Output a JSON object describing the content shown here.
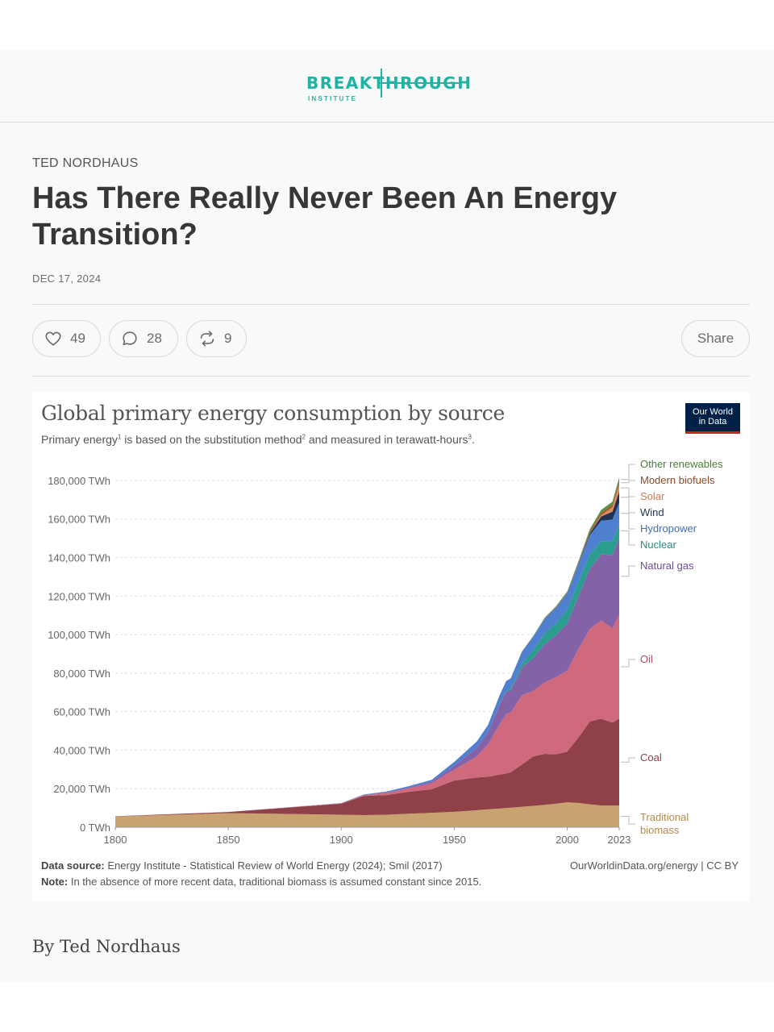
{
  "header": {
    "logo_word": "BREAKTHROUGH",
    "logo_sub": "INSTITUTE"
  },
  "post": {
    "author": "TED NORDHAUS",
    "title": "Has There Really Never Been An Energy Transition?",
    "date": "DEC 17, 2024",
    "byline": "By Ted Nordhaus"
  },
  "actions": {
    "likes": "49",
    "comments": "28",
    "restacks": "9",
    "share_label": "Share"
  },
  "icons": {
    "like": "heart-icon",
    "comment": "comment-bubble-icon",
    "restack": "restack-arrows-icon"
  },
  "chart": {
    "title": "Global primary energy consumption by source",
    "subtitle_parts": [
      "Primary energy",
      "1",
      " is based on the substitution method",
      "2",
      " and measured in terawatt-hours",
      "3",
      "."
    ],
    "badge": [
      "Our World",
      "in Data"
    ],
    "source_label": "Data source:",
    "source_text": " Energy Institute - Statistical Review of World Energy (2024); Smil (2017)",
    "note_label": "Note:",
    "note_text": " In the absence of more recent data, traditional biomass is assumed constant since 2015.",
    "credit": "OurWorldinData.org/energy | CC BY"
  },
  "chart_data": {
    "type": "area",
    "stacked": true,
    "title": "Global primary energy consumption by source",
    "unit": "TWh",
    "x": [
      1800,
      1850,
      1900,
      1910,
      1920,
      1930,
      1940,
      1950,
      1960,
      1965,
      1970,
      1973,
      1975,
      1980,
      1985,
      1990,
      1995,
      2000,
      2005,
      2010,
      2015,
      2020,
      2023
    ],
    "y_ticks": [
      0,
      20000,
      40000,
      60000,
      80000,
      100000,
      120000,
      140000,
      160000,
      180000
    ],
    "y_tick_labels": [
      "0 TWh",
      "20,000 TWh",
      "40,000 TWh",
      "60,000 TWh",
      "80,000 TWh",
      "100,000 TWh",
      "120,000 TWh",
      "140,000 TWh",
      "160,000 TWh",
      "180,000 TWh"
    ],
    "x_ticks": [
      1800,
      1850,
      1900,
      1950,
      2000,
      2023
    ],
    "ylim": [
      0,
      185000
    ],
    "xlim": [
      1800,
      2023
    ],
    "grid": true,
    "legend": "right",
    "series": [
      {
        "name": "Traditional biomass",
        "label_lines": [
          "Traditional",
          "biomass"
        ],
        "color": "#c9a36f",
        "label_color": "#b08a4e",
        "values": [
          5600,
          7300,
          6500,
          6300,
          6500,
          7000,
          7500,
          8000,
          8800,
          9300,
          9700,
          10000,
          10100,
          10600,
          11100,
          11600,
          12200,
          12900,
          12600,
          11900,
          11300,
          11300,
          11300
        ]
      },
      {
        "name": "Coal",
        "color": "#8f4048",
        "label_color": "#8f4048",
        "values": [
          100,
          600,
          5700,
          9900,
          10200,
          11400,
          12200,
          16200,
          17000,
          16900,
          17600,
          17900,
          18400,
          22000,
          25700,
          26500,
          25700,
          26400,
          34000,
          43000,
          45000,
          43000,
          45000
        ]
      },
      {
        "name": "Oil",
        "color": "#cf6a7e",
        "label_color": "#b04a5e",
        "values": [
          0,
          0,
          200,
          400,
          1100,
          1800,
          3200,
          5700,
          11000,
          17000,
          26000,
          31000,
          31000,
          36000,
          34000,
          37000,
          40000,
          42000,
          46000,
          48000,
          51000,
          49000,
          54000
        ]
      },
      {
        "name": "Natural gas",
        "color": "#8462a8",
        "label_color": "#6b4c96",
        "values": [
          0,
          0,
          100,
          200,
          300,
          500,
          800,
          2000,
          4500,
          6200,
          10200,
          11500,
          11500,
          14500,
          17000,
          20000,
          21700,
          24500,
          27500,
          31500,
          34300,
          38000,
          40000
        ]
      },
      {
        "name": "Nuclear",
        "color": "#2a9d8f",
        "label_color": "#2a8a7d",
        "values": [
          0,
          0,
          0,
          0,
          0,
          0,
          0,
          0,
          0,
          50,
          200,
          500,
          900,
          1800,
          4000,
          5400,
          6200,
          7000,
          7300,
          7200,
          6900,
          7000,
          7100
        ]
      },
      {
        "name": "Hydropower",
        "color": "#4f7fcf",
        "label_color": "#3f6fbf",
        "values": [
          0,
          0,
          50,
          200,
          400,
          650,
          900,
          2000,
          3200,
          3700,
          4600,
          5000,
          5400,
          6300,
          7200,
          7700,
          8100,
          8700,
          9200,
          10000,
          10600,
          11400,
          11000
        ]
      },
      {
        "name": "Wind",
        "color": "#1d3354",
        "label_color": "#1d3354",
        "values": [
          0,
          0,
          0,
          0,
          0,
          0,
          0,
          0,
          0,
          0,
          0,
          0,
          0,
          0,
          0,
          0,
          0,
          100,
          300,
          900,
          2200,
          4100,
          5800
        ]
      },
      {
        "name": "Solar",
        "color": "#e3895f",
        "label_color": "#d27a50",
        "values": [
          0,
          0,
          0,
          0,
          0,
          0,
          0,
          0,
          0,
          0,
          0,
          0,
          0,
          0,
          0,
          0,
          0,
          0,
          0,
          100,
          700,
          2200,
          3900
        ]
      },
      {
        "name": "Modern biofuels",
        "color": "#a3572e",
        "label_color": "#8a4a28",
        "values": [
          0,
          0,
          0,
          0,
          0,
          0,
          0,
          0,
          0,
          0,
          0,
          0,
          0,
          0,
          50,
          150,
          250,
          250,
          500,
          1000,
          1200,
          1300,
          1500
        ]
      },
      {
        "name": "Other renewables",
        "color": "#5b8f47",
        "label_color": "#4a7f38",
        "values": [
          0,
          0,
          0,
          0,
          0,
          0,
          0,
          0,
          0,
          0,
          0,
          0,
          50,
          150,
          250,
          400,
          500,
          600,
          800,
          1100,
          1500,
          1700,
          1900
        ]
      }
    ]
  },
  "palette": {
    "accent": "#1fb3a3",
    "text_dark": "#363737",
    "page_bg": "#f8f9f9"
  }
}
